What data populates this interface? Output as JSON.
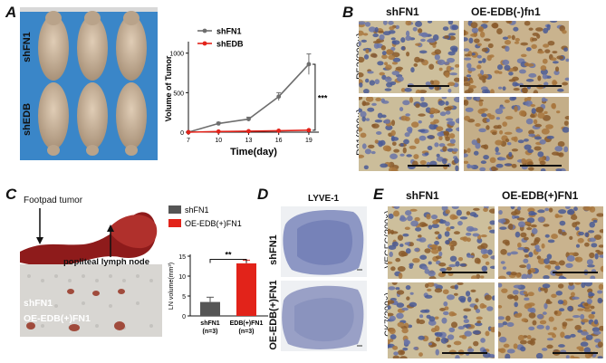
{
  "panels": {
    "A": {
      "letter": "A",
      "photo_label_top": "shFN1",
      "photo_label_bottom": "shEDB",
      "chart_data": {
        "type": "line",
        "xlabel": "Time(day)",
        "ylabel": "Volume of Tumor",
        "x": [
          7,
          10,
          13,
          16,
          19
        ],
        "xticks": [
          "7",
          "10",
          "13",
          "16",
          "19"
        ],
        "yticks": [
          "0",
          "500",
          "1000"
        ],
        "xlim": [
          7,
          20
        ],
        "ylim": [
          0,
          1100
        ],
        "series": [
          {
            "name": "shFN1",
            "color": "#6e6e6e",
            "values": [
              0,
              110,
              165,
              450,
              860
            ],
            "errors": [
              0,
              15,
              25,
              50,
              130
            ]
          },
          {
            "name": "shEDB",
            "color": "#e2231a",
            "values": [
              0,
              8,
              12,
              18,
              25
            ],
            "errors": [
              0,
              3,
              4,
              5,
              6
            ]
          }
        ],
        "annotation": "***"
      }
    },
    "B": {
      "letter": "B",
      "col1": "shFN1",
      "col2": "OE-EDB(-)fn1",
      "row1": "P53(200×)",
      "row2": "P21(200×)"
    },
    "C": {
      "letter": "C",
      "label_tumor": "Footpad tumor",
      "label_node": "popliteal lymph node",
      "label_sh": "shFN1",
      "label_oe": "OE-EDB(+)FN1",
      "chart_data": {
        "type": "bar",
        "categories": [
          "shFN1\n(n=3)",
          "EDB(+)FN1\n(n=3)"
        ],
        "category_lines": [
          [
            "shFN1",
            "(n=3)"
          ],
          [
            "EDB(+)FN1",
            "(n=3)"
          ]
        ],
        "series": [
          {
            "name": "shFN1",
            "color": "#555555"
          },
          {
            "name": "OE-EDB(+)FN1",
            "color": "#e2231a"
          }
        ],
        "values": [
          3.5,
          13.2
        ],
        "errors": [
          1.2,
          0.8
        ],
        "ylabel": "LN volume(mm³)",
        "yticks": [
          "0",
          "5",
          "10",
          "15"
        ],
        "ylim": [
          0,
          15
        ],
        "annotation": "**"
      }
    },
    "D": {
      "letter": "D",
      "title": "LYVE-1",
      "row1": "shFN1",
      "row2": "OE-EDB(+)FN1"
    },
    "E": {
      "letter": "E",
      "col1": "shFN1",
      "col2": "OE-EDB(+)FN1",
      "row1": "VEGFC(200×)",
      "row2": "CK7(200×)"
    }
  },
  "colors": {
    "blue_bg": "#3a86c8",
    "mouse": "#c9b39a",
    "ihc_bg": "#c8ba96",
    "ihc_brown": "#8a5a2b",
    "ihc_blue": "#4a5a95",
    "lyve_bg": "#8e98c4"
  }
}
